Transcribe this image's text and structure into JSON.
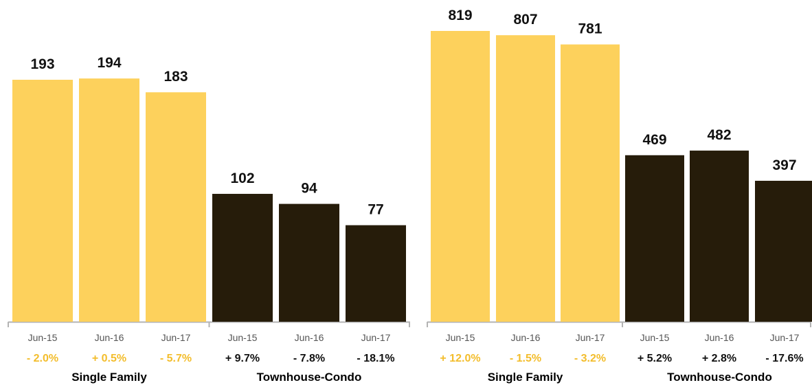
{
  "colors": {
    "single_family": "#fdd15c",
    "townhouse_condo": "#261c0a",
    "change_single_family": "#f3bd2c",
    "change_townhouse_condo": "#111111",
    "axis": "#b3b3b3"
  },
  "chart_data": [
    {
      "type": "bar",
      "title": "",
      "xlabel": "",
      "ylabel": "",
      "ylim": [
        0,
        193
      ],
      "groups": [
        {
          "name": "Single Family",
          "color_key": "single_family",
          "categories": [
            "Jun-15",
            "Jun-16",
            "Jun-17"
          ],
          "values": [
            193,
            194,
            183
          ],
          "changes": [
            "- 2.0%",
            "+ 0.5%",
            "- 5.7%"
          ]
        },
        {
          "name": "Townhouse-Condo",
          "color_key": "townhouse_condo",
          "categories": [
            "Jun-15",
            "Jun-16",
            "Jun-17"
          ],
          "values": [
            102,
            94,
            77
          ],
          "changes": [
            "+ 9.7%",
            "- 7.8%",
            "- 18.1%"
          ]
        }
      ]
    },
    {
      "type": "bar",
      "title": "",
      "xlabel": "",
      "ylabel": "",
      "ylim": [
        0,
        819
      ],
      "groups": [
        {
          "name": "Single Family",
          "color_key": "single_family",
          "categories": [
            "Jun-15",
            "Jun-16",
            "Jun-17"
          ],
          "values": [
            819,
            807,
            781
          ],
          "changes": [
            "+ 12.0%",
            "- 1.5%",
            "- 3.2%"
          ]
        },
        {
          "name": "Townhouse-Condo",
          "color_key": "townhouse_condo",
          "categories": [
            "Jun-15",
            "Jun-16",
            "Jun-17"
          ],
          "values": [
            469,
            482,
            397
          ],
          "changes": [
            "+ 5.2%",
            "+ 2.8%",
            "- 17.6%"
          ]
        }
      ]
    }
  ]
}
